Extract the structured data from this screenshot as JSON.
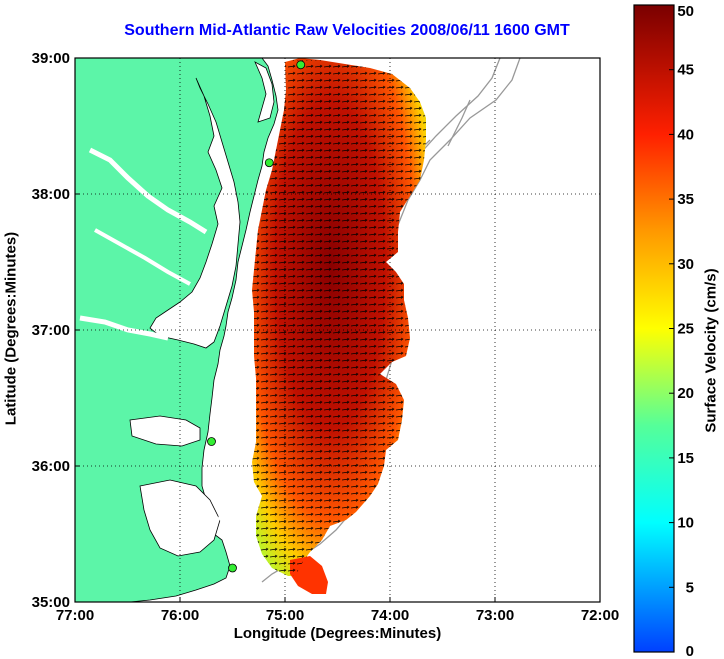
{
  "title": "Southern Mid-Atlantic Raw Velocities 2008/06/11 1600 GMT",
  "axes": {
    "xlabel": "Longitude (Degrees:Minutes)",
    "ylabel": "Latitude (Degrees:Minutes)",
    "x_ticks": [
      "77:00",
      "76:00",
      "75:00",
      "74:00",
      "73:00",
      "72:00"
    ],
    "y_ticks": [
      "39:00",
      "38:00",
      "37:00",
      "36:00",
      "35:00"
    ],
    "lon_range": [
      -77,
      -72
    ],
    "lat_range": [
      35,
      39
    ],
    "grid": "dotted"
  },
  "colorbar": {
    "label": "Surface Velocity (cm/s)",
    "ticks": [
      "50",
      "45",
      "40",
      "35",
      "30",
      "25",
      "20",
      "15",
      "10",
      "5",
      "0"
    ],
    "range": [
      0,
      50
    ],
    "colormap": "jet"
  },
  "colors": {
    "land": "#5cf5a8",
    "water": "#ffffff",
    "title": "#0000ff",
    "station": "#33ee33",
    "bathymetry": "#999999"
  },
  "stations": [
    {
      "lon": -74.85,
      "lat": 38.95
    },
    {
      "lon": -75.15,
      "lat": 38.23
    },
    {
      "lon": -75.7,
      "lat": 36.18
    },
    {
      "lon": -75.5,
      "lat": 35.25
    }
  ]
}
